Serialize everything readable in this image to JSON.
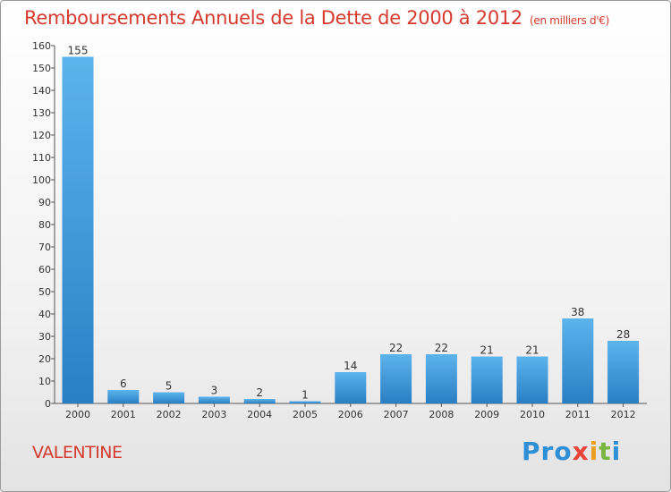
{
  "header": {
    "title": "Remboursements Annuels de la Dette de 2000 à 2012",
    "unit": "(en milliers d'€)"
  },
  "footer": {
    "commune": "VALENTINE",
    "logo": [
      "Pro",
      "x",
      "i",
      "t",
      "i"
    ]
  },
  "colors": {
    "title": "#d63a2e",
    "bar_top": "#5db3ec",
    "bar_bottom": "#2a7fc4"
  },
  "chart_data": {
    "type": "bar",
    "title": "Remboursements Annuels de la Dette de 2000 à 2012",
    "xlabel": "",
    "ylabel": "",
    "categories": [
      "2000",
      "2001",
      "2002",
      "2003",
      "2004",
      "2005",
      "2006",
      "2007",
      "2008",
      "2009",
      "2010",
      "2011",
      "2012"
    ],
    "values": [
      155,
      6,
      5,
      3,
      2,
      1,
      14,
      22,
      22,
      21,
      21,
      38,
      28
    ],
    "ylim": [
      0,
      160
    ],
    "yticks": [
      0,
      10,
      20,
      30,
      40,
      50,
      60,
      70,
      80,
      90,
      100,
      110,
      120,
      130,
      140,
      150,
      160
    ],
    "grid": false,
    "legend": "none"
  }
}
